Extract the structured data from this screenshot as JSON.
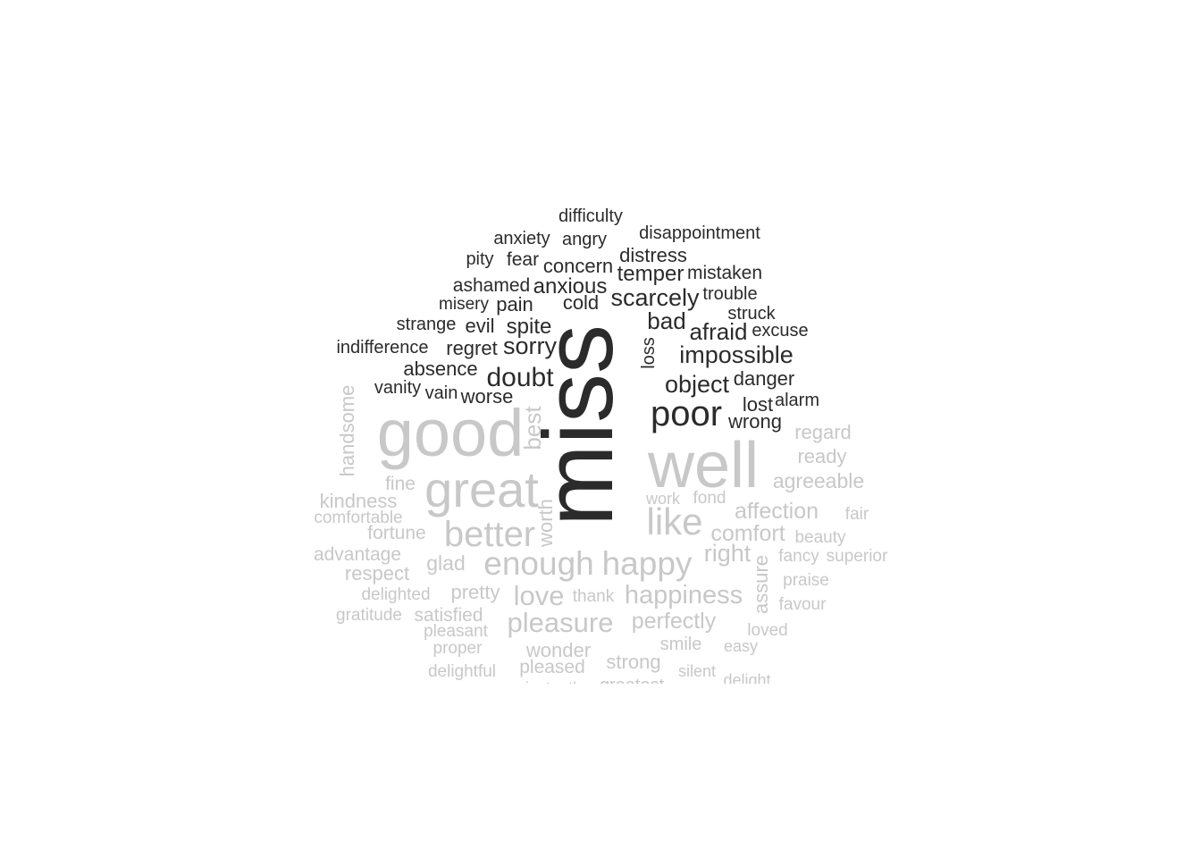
{
  "colors": {
    "negative": "#2b2b2b",
    "positive": "#c8c8c8",
    "background": "#ffffff"
  },
  "words": [
    {
      "text": "difficulty",
      "sentiment": "negative"
    },
    {
      "text": "disappointment",
      "sentiment": "negative"
    },
    {
      "text": "anxiety",
      "sentiment": "negative"
    },
    {
      "text": "angry",
      "sentiment": "negative"
    },
    {
      "text": "pity",
      "sentiment": "negative"
    },
    {
      "text": "fear",
      "sentiment": "negative"
    },
    {
      "text": "distress",
      "sentiment": "negative"
    },
    {
      "text": "concern",
      "sentiment": "negative"
    },
    {
      "text": "temper",
      "sentiment": "negative"
    },
    {
      "text": "mistaken",
      "sentiment": "negative"
    },
    {
      "text": "ashamed",
      "sentiment": "negative"
    },
    {
      "text": "anxious",
      "sentiment": "negative"
    },
    {
      "text": "trouble",
      "sentiment": "negative"
    },
    {
      "text": "misery",
      "sentiment": "negative"
    },
    {
      "text": "pain",
      "sentiment": "negative"
    },
    {
      "text": "cold",
      "sentiment": "negative"
    },
    {
      "text": "scarcely",
      "sentiment": "negative"
    },
    {
      "text": "struck",
      "sentiment": "negative"
    },
    {
      "text": "strange",
      "sentiment": "negative"
    },
    {
      "text": "evil",
      "sentiment": "negative"
    },
    {
      "text": "spite",
      "sentiment": "negative"
    },
    {
      "text": "bad",
      "sentiment": "negative"
    },
    {
      "text": "afraid",
      "sentiment": "negative"
    },
    {
      "text": "excuse",
      "sentiment": "negative"
    },
    {
      "text": "indifference",
      "sentiment": "negative"
    },
    {
      "text": "regret",
      "sentiment": "negative"
    },
    {
      "text": "sorry",
      "sentiment": "negative"
    },
    {
      "text": "loss",
      "sentiment": "negative"
    },
    {
      "text": "impossible",
      "sentiment": "negative"
    },
    {
      "text": "absence",
      "sentiment": "negative"
    },
    {
      "text": "doubt",
      "sentiment": "negative"
    },
    {
      "text": "danger",
      "sentiment": "negative"
    },
    {
      "text": "vanity",
      "sentiment": "negative"
    },
    {
      "text": "vain",
      "sentiment": "negative"
    },
    {
      "text": "worse",
      "sentiment": "negative"
    },
    {
      "text": "object",
      "sentiment": "negative"
    },
    {
      "text": "lost",
      "sentiment": "negative"
    },
    {
      "text": "alarm",
      "sentiment": "negative"
    },
    {
      "text": "poor",
      "sentiment": "negative"
    },
    {
      "text": "wrong",
      "sentiment": "negative"
    },
    {
      "text": "miss",
      "sentiment": "negative"
    },
    {
      "text": "handsome",
      "sentiment": "positive"
    },
    {
      "text": "good",
      "sentiment": "positive"
    },
    {
      "text": "best",
      "sentiment": "positive"
    },
    {
      "text": "regard",
      "sentiment": "positive"
    },
    {
      "text": "ready",
      "sentiment": "positive"
    },
    {
      "text": "well",
      "sentiment": "positive"
    },
    {
      "text": "fine",
      "sentiment": "positive"
    },
    {
      "text": "great",
      "sentiment": "positive"
    },
    {
      "text": "agreeable",
      "sentiment": "positive"
    },
    {
      "text": "kindness",
      "sentiment": "positive"
    },
    {
      "text": "work",
      "sentiment": "positive"
    },
    {
      "text": "fond",
      "sentiment": "positive"
    },
    {
      "text": "comfortable",
      "sentiment": "positive"
    },
    {
      "text": "affection",
      "sentiment": "positive"
    },
    {
      "text": "fair",
      "sentiment": "positive"
    },
    {
      "text": "worth",
      "sentiment": "positive"
    },
    {
      "text": "like",
      "sentiment": "positive"
    },
    {
      "text": "fortune",
      "sentiment": "positive"
    },
    {
      "text": "better",
      "sentiment": "positive"
    },
    {
      "text": "comfort",
      "sentiment": "positive"
    },
    {
      "text": "beauty",
      "sentiment": "positive"
    },
    {
      "text": "advantage",
      "sentiment": "positive"
    },
    {
      "text": "right",
      "sentiment": "positive"
    },
    {
      "text": "fancy",
      "sentiment": "positive"
    },
    {
      "text": "superior",
      "sentiment": "positive"
    },
    {
      "text": "glad",
      "sentiment": "positive"
    },
    {
      "text": "enough",
      "sentiment": "positive"
    },
    {
      "text": "happy",
      "sentiment": "positive"
    },
    {
      "text": "respect",
      "sentiment": "positive"
    },
    {
      "text": "assure",
      "sentiment": "positive"
    },
    {
      "text": "praise",
      "sentiment": "positive"
    },
    {
      "text": "delighted",
      "sentiment": "positive"
    },
    {
      "text": "pretty",
      "sentiment": "positive"
    },
    {
      "text": "love",
      "sentiment": "positive"
    },
    {
      "text": "thank",
      "sentiment": "positive"
    },
    {
      "text": "happiness",
      "sentiment": "positive"
    },
    {
      "text": "favour",
      "sentiment": "positive"
    },
    {
      "text": "gratitude",
      "sentiment": "positive"
    },
    {
      "text": "satisfied",
      "sentiment": "positive"
    },
    {
      "text": "pleasure",
      "sentiment": "positive"
    },
    {
      "text": "perfectly",
      "sentiment": "positive"
    },
    {
      "text": "pleasant",
      "sentiment": "positive"
    },
    {
      "text": "loved",
      "sentiment": "positive"
    },
    {
      "text": "proper",
      "sentiment": "positive"
    },
    {
      "text": "wonder",
      "sentiment": "positive"
    },
    {
      "text": "smile",
      "sentiment": "positive"
    },
    {
      "text": "easy",
      "sentiment": "positive"
    },
    {
      "text": "delightful",
      "sentiment": "positive"
    },
    {
      "text": "pleased",
      "sentiment": "positive"
    },
    {
      "text": "strong",
      "sentiment": "positive"
    },
    {
      "text": "silent",
      "sentiment": "positive"
    },
    {
      "text": "delight",
      "sentiment": "positive"
    },
    {
      "text": "greatest",
      "sentiment": "positive"
    },
    {
      "text": "instantly",
      "sentiment": "positive"
    }
  ]
}
